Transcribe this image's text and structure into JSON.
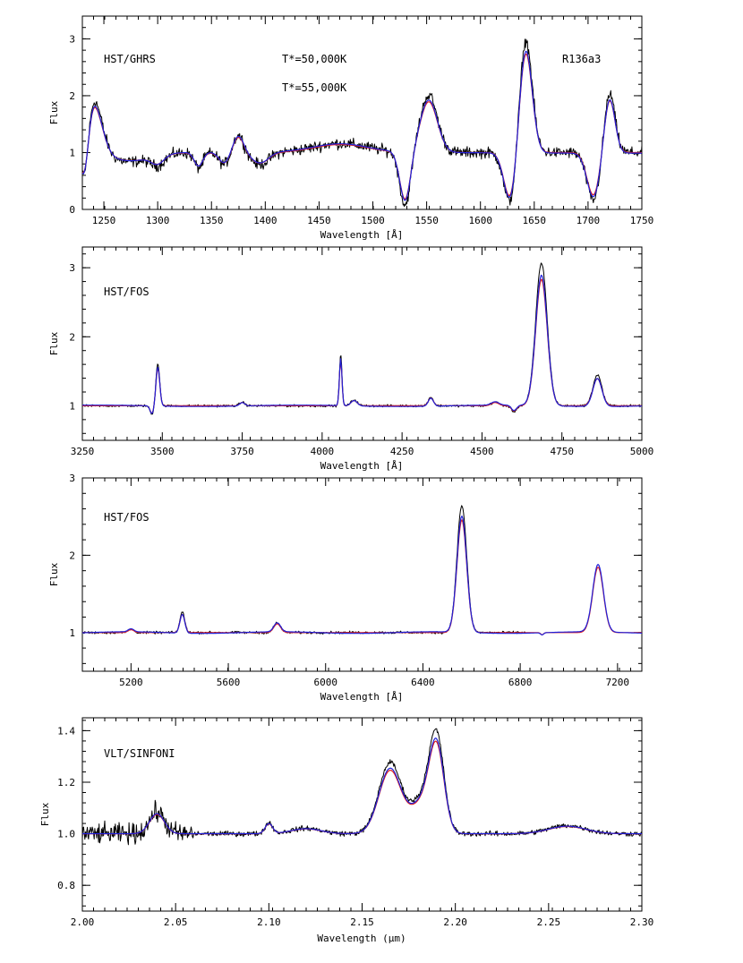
{
  "figure": {
    "series_colors": {
      "observed": "#000000",
      "model_50k": "#e02020",
      "model_55k": "#2020d8"
    }
  },
  "chart_data": [
    {
      "type": "line",
      "panel_label": "HST/GHRS",
      "star_label": "R136a3",
      "legend": [
        {
          "text": "T*=50,000K",
          "color": "#e02020"
        },
        {
          "text": "T*=55,000K",
          "color": "#2020d8"
        }
      ],
      "xlabel": "Wavelength [Å]",
      "ylabel": "Flux",
      "xlim": [
        1230,
        1750
      ],
      "ylim": [
        0,
        3.4
      ],
      "xticks": [
        1250,
        1300,
        1350,
        1400,
        1450,
        1500,
        1550,
        1600,
        1650,
        1700,
        1750
      ],
      "yticks": [
        0,
        1,
        2,
        3
      ],
      "xtick_labels": [
        "1250",
        "1300",
        "1350",
        "1400",
        "1450",
        "1500",
        "1550",
        "1600",
        "1650",
        "1700",
        "1750"
      ],
      "ytick_labels": [
        "0",
        "1",
        "2",
        "3"
      ],
      "continuum": 1.0,
      "noise": 0.12,
      "obs_start": 1230,
      "obs_end": 1750,
      "model_start": 1230,
      "model_end": 1750,
      "features": [
        {
          "x": 1240,
          "w": 8,
          "a": 0.95
        },
        {
          "x": 1232,
          "w": 4,
          "a": -0.9
        },
        {
          "x": 1275,
          "w": 20,
          "a": -0.15
        },
        {
          "x": 1300,
          "w": 6,
          "a": -0.15
        },
        {
          "x": 1338,
          "w": 4,
          "a": -0.25
        },
        {
          "x": 1375,
          "w": 5,
          "a": 0.3
        },
        {
          "x": 1362,
          "w": 5,
          "a": -0.2
        },
        {
          "x": 1395,
          "w": 8,
          "a": -0.2
        },
        {
          "x": 1470,
          "w": 25,
          "a": 0.15
        },
        {
          "x": 1530,
          "w": 5,
          "a": -0.9
        },
        {
          "x": 1552,
          "w": 8,
          "a": 0.95
        },
        {
          "x": 1628,
          "w": 6,
          "a": -0.9
        },
        {
          "x": 1642,
          "w": 6,
          "a": 1.9
        },
        {
          "x": 1705,
          "w": 6,
          "a": -0.8
        },
        {
          "x": 1720,
          "w": 5,
          "a": 1.0
        }
      ]
    },
    {
      "type": "line",
      "panel_label": "HST/FOS",
      "xlabel": "Wavelength [Å]",
      "ylabel": "Flux",
      "xlim": [
        3250,
        5000
      ],
      "ylim": [
        0.5,
        3.3
      ],
      "xticks": [
        3250,
        3500,
        3750,
        4000,
        4250,
        4500,
        4750,
        5000
      ],
      "yticks": [
        1,
        2,
        3
      ],
      "xtick_labels": [
        "3250",
        "3500",
        "3750",
        "4000",
        "4250",
        "4500",
        "4750",
        "5000"
      ],
      "ytick_labels": [
        "1",
        "2",
        "3"
      ],
      "continuum": 1.0,
      "noise": 0.02,
      "obs_start": 3250,
      "obs_end": 5000,
      "model_start": 3250,
      "model_end": 5000,
      "features": [
        {
          "x": 3486,
          "w": 6,
          "a": 0.58
        },
        {
          "x": 3468,
          "w": 6,
          "a": -0.12
        },
        {
          "x": 3750,
          "w": 8,
          "a": 0.05
        },
        {
          "x": 4058,
          "w": 4,
          "a": 0.7
        },
        {
          "x": 4100,
          "w": 10,
          "a": 0.08
        },
        {
          "x": 4340,
          "w": 8,
          "a": 0.12
        },
        {
          "x": 4541,
          "w": 12,
          "a": 0.05
        },
        {
          "x": 4600,
          "w": 8,
          "a": -0.08
        },
        {
          "x": 4686,
          "w": 18,
          "a": 1.95
        },
        {
          "x": 4861,
          "w": 14,
          "a": 0.42
        }
      ]
    },
    {
      "type": "line",
      "panel_label": "HST/FOS",
      "xlabel": "Wavelength [Å]",
      "ylabel": "Flux",
      "xlim": [
        5000,
        7300
      ],
      "ylim": [
        0.5,
        3.0
      ],
      "xticks": [
        5200,
        5600,
        6000,
        6400,
        6800,
        7200
      ],
      "yticks": [
        1,
        2,
        3
      ],
      "xtick_labels": [
        "5200",
        "5600",
        "6000",
        "6400",
        "6800",
        "7200"
      ],
      "ytick_labels": [
        "1",
        "2",
        "3"
      ],
      "continuum": 1.0,
      "noise": 0.02,
      "obs_start": 5000,
      "obs_end": 6820,
      "model_start": 5000,
      "model_end": 7300,
      "features": [
        {
          "x": 5200,
          "w": 12,
          "a": 0.04
        },
        {
          "x": 5411,
          "w": 10,
          "a": 0.25
        },
        {
          "x": 5801,
          "w": 14,
          "a": 0.12
        },
        {
          "x": 6560,
          "w": 20,
          "a": 1.55
        },
        {
          "x": 6890,
          "w": 6,
          "a": -0.03
        },
        {
          "x": 7120,
          "w": 22,
          "a": 0.9
        }
      ]
    },
    {
      "type": "line",
      "panel_label": "VLT/SINFONI",
      "xlabel": "Wavelength (μm)",
      "ylabel": "Flux",
      "xlim": [
        2.0,
        2.3
      ],
      "ylim": [
        0.7,
        1.45
      ],
      "xticks": [
        2.0,
        2.05,
        2.1,
        2.15,
        2.2,
        2.25,
        2.3
      ],
      "yticks": [
        0.8,
        1.0,
        1.2,
        1.4
      ],
      "xtick_labels": [
        "2.00",
        "2.05",
        "2.10",
        "2.15",
        "2.20",
        "2.25",
        "2.30"
      ],
      "ytick_labels": [
        "0.8",
        "1.0",
        "1.2",
        "1.4"
      ],
      "continuum": 1.0,
      "noise": 0.012,
      "obs_start": 2.0,
      "obs_end": 2.3,
      "model_start": 2.0,
      "model_end": 2.3,
      "features": [
        {
          "x": 2.04,
          "w": 0.004,
          "a": 0.08
        },
        {
          "x": 2.1,
          "w": 0.002,
          "a": 0.04
        },
        {
          "x": 2.12,
          "w": 0.008,
          "a": 0.02
        },
        {
          "x": 2.165,
          "w": 0.006,
          "a": 0.26
        },
        {
          "x": 2.182,
          "w": 0.006,
          "a": 0.12
        },
        {
          "x": 2.19,
          "w": 0.004,
          "a": 0.33
        },
        {
          "x": 2.26,
          "w": 0.01,
          "a": 0.03
        }
      ]
    }
  ]
}
